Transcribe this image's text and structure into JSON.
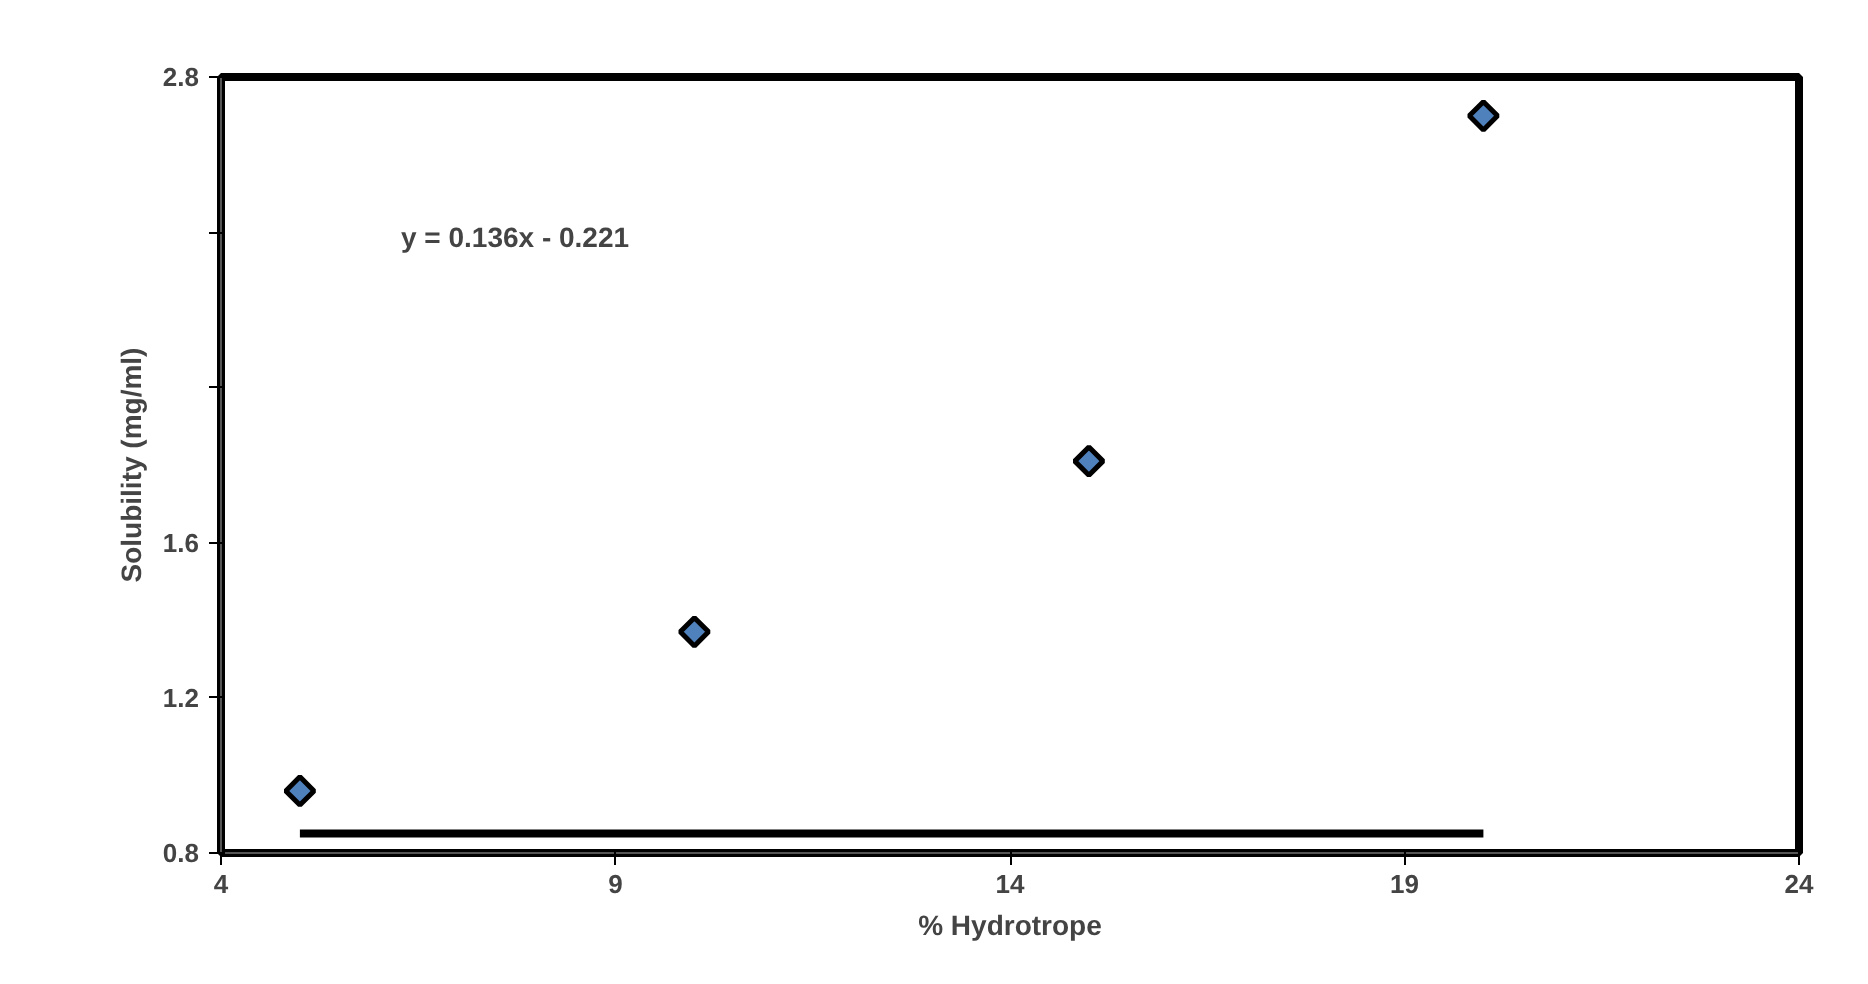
{
  "chart_data": {
    "type": "scatter",
    "xlabel": "% Hydrotrope",
    "ylabel": "Solubility (mg/ml)",
    "x": [
      5,
      10,
      15,
      20
    ],
    "series": [
      {
        "color": "#4f81bd",
        "values": [
          0.96,
          1.37,
          1.81,
          2.7
        ]
      },
      {
        "type": "line",
        "marker": "none",
        "color": "#000000",
        "x": [
          5,
          20
        ],
        "values": [
          0.85,
          0.85
        ]
      }
    ],
    "marker": "diamond",
    "grid": false,
    "xlim": [
      4,
      24
    ],
    "xticks": [
      4,
      9,
      14,
      19,
      24
    ],
    "ylim": [
      0.8,
      2.8
    ],
    "yticks": [
      0.8,
      1.2,
      1.6,
      {
        "value": 2.0,
        "label": null
      },
      {
        "value": 2.4,
        "label": null
      },
      2.8
    ],
    "annotations": [
      "y = 0.136x - 0.221"
    ]
  }
}
